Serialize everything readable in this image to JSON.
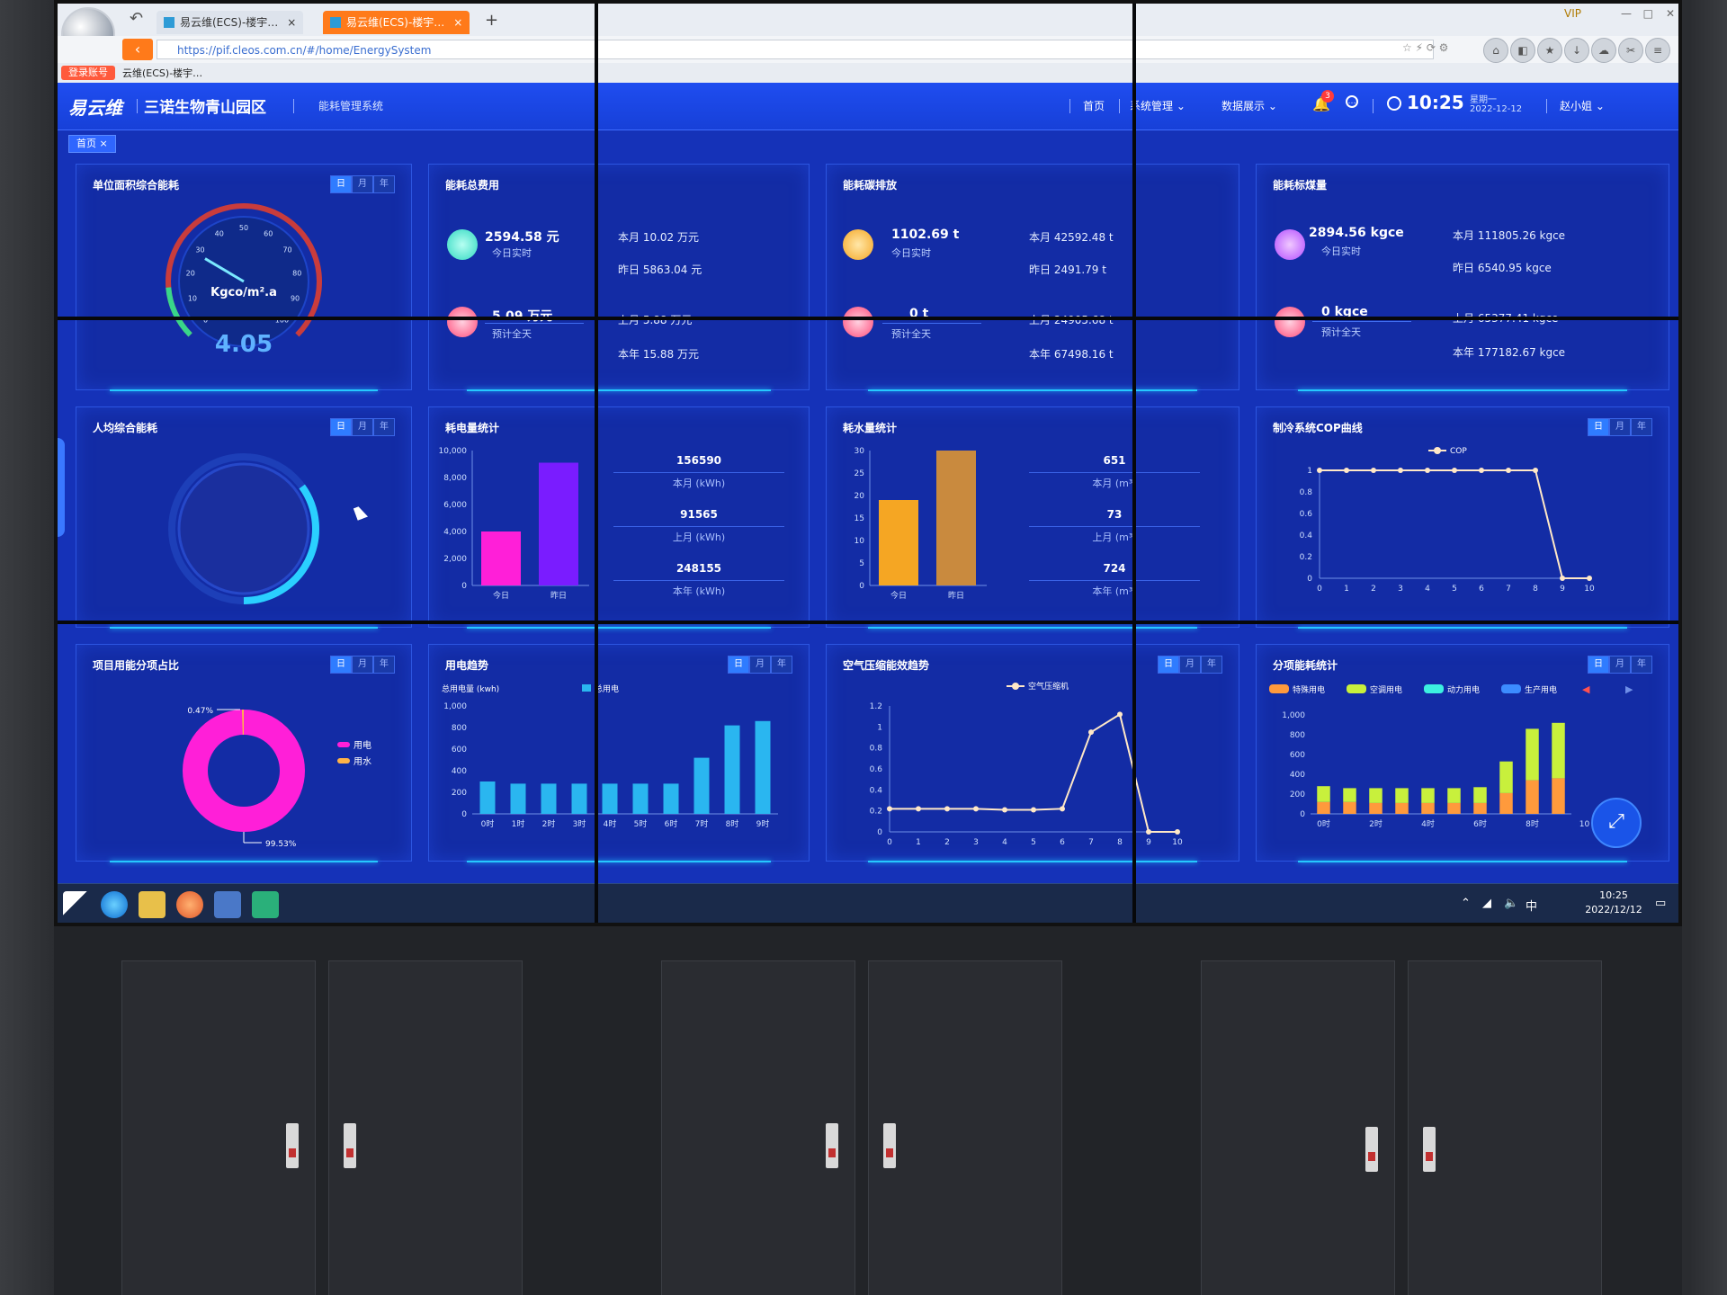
{
  "browser": {
    "tabs": [
      {
        "label": "易云维(ECS)-楼宇…"
      },
      {
        "label": "易云维(ECS)-楼宇…"
      }
    ],
    "url": "https://pif.cleos.com.cn/#/home/EnergySystem",
    "favbar_login": "登录账号",
    "favbar_item": "云维(ECS)-楼宇…",
    "vip": "VIP"
  },
  "header": {
    "logo": "易云维",
    "park_name": "三诺生物青山园区",
    "system_name": "能耗管理系统",
    "nav": [
      "首页",
      "系统管理",
      "数据展示"
    ],
    "bell_count": "3",
    "time": "10:25",
    "weekday": "星期一",
    "date": "2022-12-12",
    "user": "赵小姐"
  },
  "tag": {
    "label": "首页 ×"
  },
  "dmy": [
    "日",
    "月",
    "年"
  ],
  "panels": {
    "unit_area": {
      "title": "单位面积综合能耗",
      "unit": "Kgco/m².a",
      "value": "4.05",
      "gauge_fraction": 0.04,
      "ticks": [
        "0",
        "10",
        "20",
        "30",
        "40",
        "50",
        "60",
        "70",
        "80",
        "90",
        "100"
      ]
    },
    "energy_cost": {
      "title": "能耗总费用",
      "today_value": "2594.58 元",
      "today_label": "今日实时",
      "forecast_value": "5.09 万元",
      "forecast_label": "预计全天",
      "month": "本月 10.02 万元",
      "yesterday": "昨日 5863.04 元",
      "last_month": "上月 5.88 万元",
      "year": "本年 15.88 万元"
    },
    "carbon": {
      "title": "能耗碳排放",
      "today_value": "1102.69 t",
      "today_label": "今日实时",
      "forecast_value": "0 t",
      "forecast_label": "预计全天",
      "month": "本月 42592.48 t",
      "yesterday": "昨日 2491.79 t",
      "last_month": "上月 24905.68 t",
      "year": "本年 67498.16 t"
    },
    "coal": {
      "title": "能耗标煤量",
      "today_value": "2894.56 kgce",
      "today_label": "今日实时",
      "forecast_value": "0 kgce",
      "forecast_label": "预计全天",
      "month": "本月 111805.26 kgce",
      "yesterday": "昨日 6540.95 kgce",
      "last_month": "上月 65377.41 kgce",
      "year": "本年 177182.67 kgce"
    },
    "per_capita": {
      "title": "人均综合能耗",
      "gauge_fraction": 0.35
    },
    "electricity": {
      "title": "耗电量统计",
      "month_value": "156590",
      "month_label": "本月 (kWh)",
      "last_month_value": "91565",
      "last_month_label": "上月 (kWh)",
      "year_value": "248155",
      "year_label": "本年 (kWh)"
    },
    "water": {
      "title": "耗水量统计",
      "month_value": "651",
      "month_label": "本月 (m³)",
      "last_month_value": "73",
      "last_month_label": "上月 (m³)",
      "year_value": "724",
      "year_label": "本年 (m³)"
    },
    "cop": {
      "title": "制冷系统COP曲线"
    },
    "share": {
      "title": "项目用能分项占比"
    },
    "power_trend": {
      "title": "用电趋势"
    },
    "air": {
      "title": "空气压缩能效趋势"
    },
    "subitem": {
      "title": "分项能耗统计"
    }
  },
  "chart_data": [
    {
      "type": "bar",
      "id": "electricity",
      "categories": [
        "今日",
        "昨日"
      ],
      "values": [
        4000,
        9100
      ],
      "colors": [
        "#ff1fd8",
        "#7a1cff"
      ],
      "ylim": [
        0,
        10000
      ],
      "yticks": [
        "0",
        "2,000",
        "4,000",
        "6,000",
        "8,000",
        "10,000"
      ]
    },
    {
      "type": "bar",
      "id": "water",
      "categories": [
        "今日",
        "昨日"
      ],
      "values": [
        19,
        30
      ],
      "colors": [
        "#f5a623",
        "#c98a3e"
      ],
      "ylim": [
        0,
        30
      ],
      "yticks": [
        "0",
        "5",
        "10",
        "15",
        "20",
        "25",
        "30"
      ]
    },
    {
      "type": "line",
      "id": "cop",
      "series": [
        {
          "name": "COP",
          "values": [
            1,
            1,
            1,
            1,
            1,
            1,
            1,
            1,
            1,
            0,
            0
          ]
        }
      ],
      "x": [
        "0",
        "1",
        "2",
        "3",
        "4",
        "5",
        "6",
        "7",
        "8",
        "9",
        "10"
      ],
      "ylim": [
        0,
        1
      ],
      "yticks": [
        "0",
        "0.2",
        "0.4",
        "0.6",
        "0.8",
        "1"
      ],
      "color": "#ffe8c7"
    },
    {
      "type": "pie",
      "id": "share",
      "slices": [
        {
          "name": "用电",
          "value": 99.53,
          "label": "99.53%",
          "color": "#ff1fd8"
        },
        {
          "name": "用水",
          "value": 0.47,
          "label": "0.47%",
          "color": "#ffb347"
        }
      ]
    },
    {
      "type": "bar",
      "id": "power_trend",
      "ylabel": "总用电量 (kwh)",
      "legend": [
        "总用电"
      ],
      "categories": [
        "0时",
        "1时",
        "2时",
        "3时",
        "4时",
        "5时",
        "6时",
        "7时",
        "8时",
        "9时"
      ],
      "values": [
        300,
        280,
        280,
        280,
        280,
        280,
        280,
        520,
        820,
        860
      ],
      "ylim": [
        0,
        1000
      ],
      "yticks": [
        "0",
        "200",
        "400",
        "600",
        "800",
        "1,000"
      ],
      "color": "#2ab6f0"
    },
    {
      "type": "line",
      "id": "air",
      "series": [
        {
          "name": "空气压缩机",
          "values": [
            0.22,
            0.22,
            0.22,
            0.22,
            0.21,
            0.21,
            0.22,
            0.95,
            1.12,
            0,
            0
          ]
        }
      ],
      "x": [
        "0",
        "1",
        "2",
        "3",
        "4",
        "5",
        "6",
        "7",
        "8",
        "9",
        "10"
      ],
      "ylim": [
        0,
        1.2
      ],
      "yticks": [
        "0",
        "0.2",
        "0.4",
        "0.6",
        "0.8",
        "1",
        "1.2"
      ],
      "color": "#ffe8c7"
    },
    {
      "type": "bar",
      "id": "subitem",
      "legend": [
        "特殊用电",
        "空调用电",
        "动力用电",
        "生产用电"
      ],
      "legend_colors": [
        "#ff9a3c",
        "#c8f03c",
        "#3cf0e0",
        "#3c8cff"
      ],
      "categories": [
        "0时",
        "1时",
        "2时",
        "3时",
        "4时",
        "5时",
        "6时",
        "7时",
        "8时",
        "9时"
      ],
      "tick_labels": [
        "0时",
        "2时",
        "4时",
        "6时",
        "8时",
        "10"
      ],
      "series": [
        {
          "name": "特殊用电",
          "values": [
            120,
            120,
            110,
            110,
            110,
            110,
            110,
            210,
            340,
            360
          ],
          "color": "#ff9a3c"
        },
        {
          "name": "空调用电",
          "values": [
            160,
            140,
            150,
            150,
            150,
            150,
            160,
            320,
            520,
            560
          ],
          "color": "#c8f03c"
        }
      ],
      "ylim": [
        0,
        1000
      ],
      "yticks": [
        "0",
        "200",
        "400",
        "600",
        "800",
        "1,000"
      ]
    }
  ],
  "taskbar": {
    "time": "10:25",
    "date": "2022/12/12"
  }
}
